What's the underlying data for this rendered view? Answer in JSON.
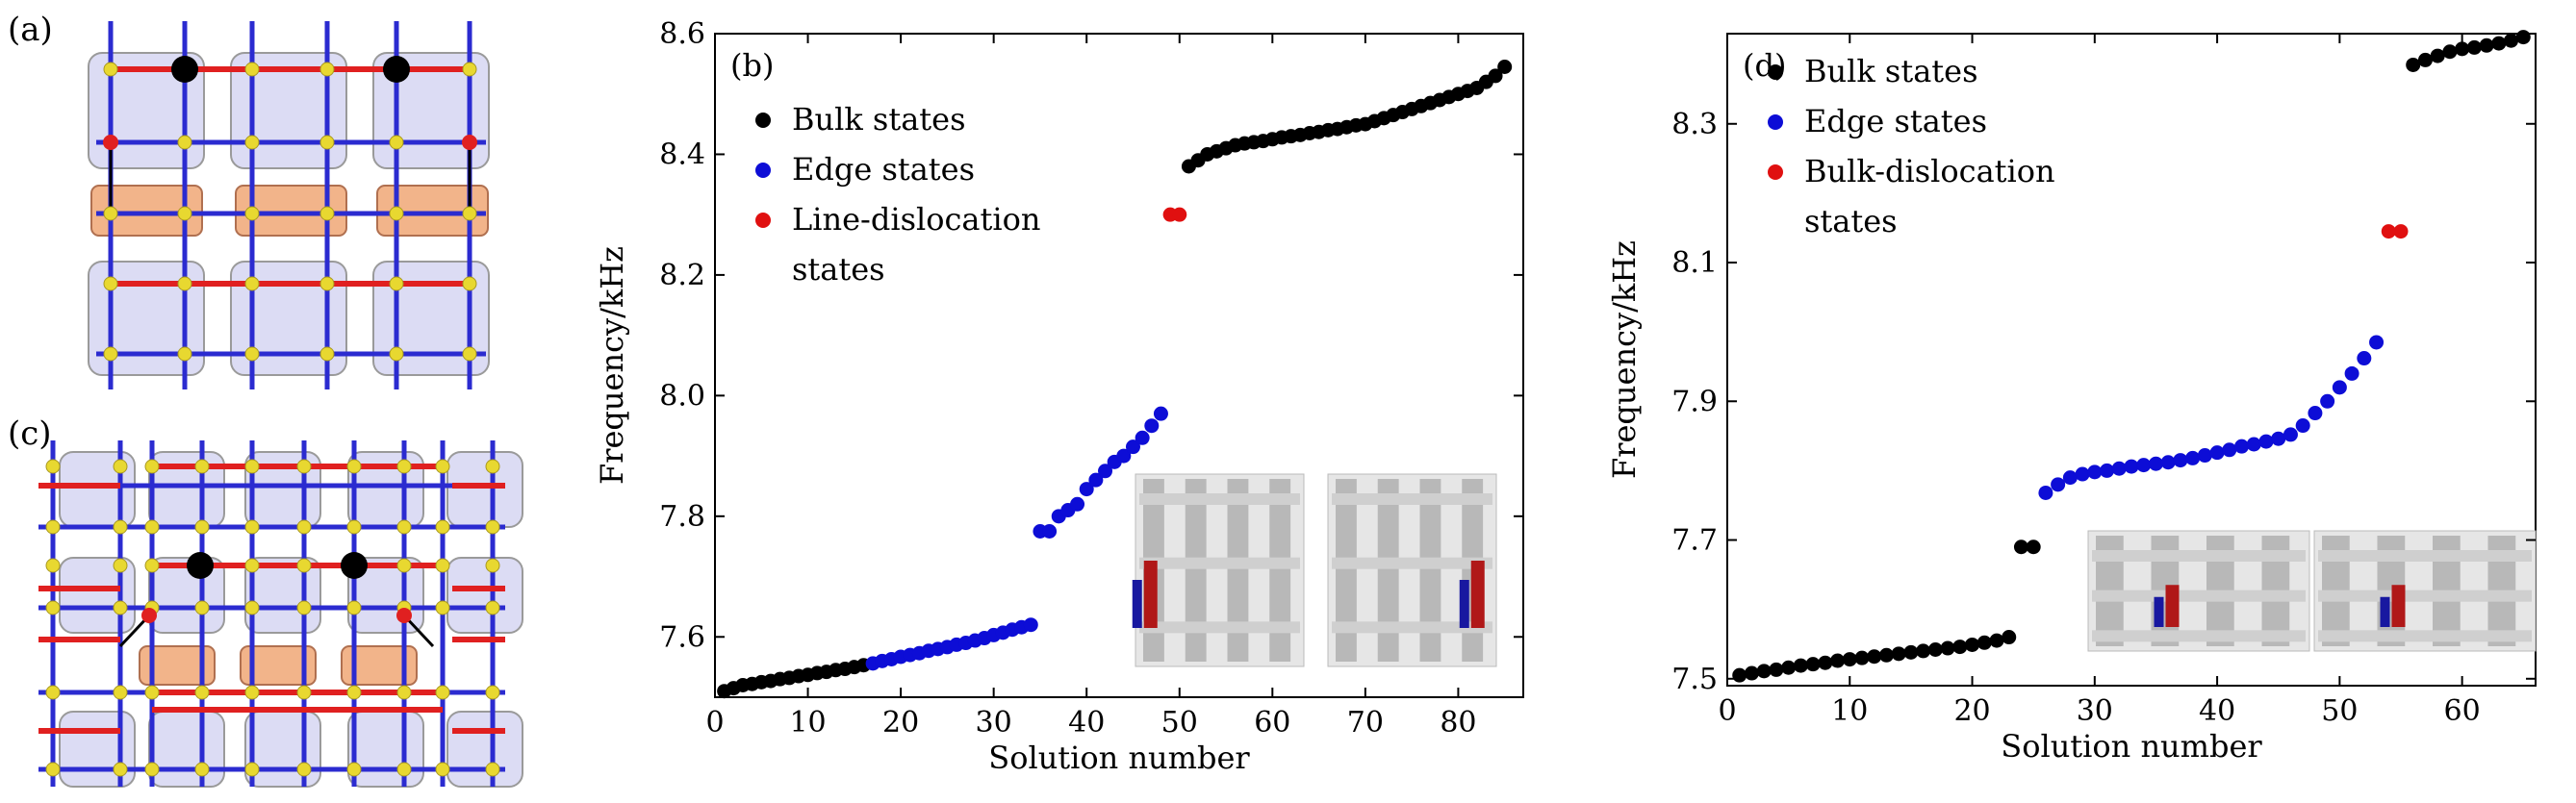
{
  "figure": {
    "panel_a_label": "(a)",
    "panel_c_label": "(c)"
  },
  "colors": {
    "bulk": "#000000",
    "edge": "#0d0dd6",
    "dislocation": "#e01010",
    "lattice_blue": "#2b2bd0",
    "lattice_red": "#e02020",
    "node_yellow": "#e8d830",
    "cell_fill": "#dcdcf4",
    "defect_fill": "#f2b48a"
  },
  "chart_data": [
    {
      "panel": "(b)",
      "type": "scatter",
      "xlabel": "Solution number",
      "ylabel": "Frequency/kHz",
      "xlim": [
        0,
        87
      ],
      "ylim": [
        7.5,
        8.6
      ],
      "xticks": [
        0,
        10,
        20,
        30,
        40,
        50,
        60,
        70,
        80
      ],
      "yticks": [
        7.6,
        7.8,
        8.0,
        8.2,
        8.4,
        8.6
      ],
      "ytick_labels": [
        "7.6",
        "7.8",
        "8.0",
        "8.2",
        "8.4",
        "8.6"
      ],
      "legend": {
        "position": "top-left",
        "entries": [
          "Bulk states",
          "Edge states",
          "Line-dislocation",
          "states"
        ]
      },
      "series": [
        {
          "name": "Bulk states",
          "color": "#000000",
          "x": [
            1,
            2,
            3,
            4,
            5,
            6,
            7,
            8,
            9,
            10,
            11,
            12,
            13,
            14,
            15,
            16,
            51,
            52,
            53,
            54,
            55,
            56,
            57,
            58,
            59,
            60,
            61,
            62,
            63,
            64,
            65,
            66,
            67,
            68,
            69,
            70,
            71,
            72,
            73,
            74,
            75,
            76,
            77,
            78,
            79,
            80,
            81,
            82,
            83,
            84,
            85
          ],
          "y": [
            7.51,
            7.515,
            7.52,
            7.522,
            7.525,
            7.527,
            7.53,
            7.532,
            7.535,
            7.537,
            7.54,
            7.542,
            7.545,
            7.547,
            7.55,
            7.553,
            8.38,
            8.39,
            8.4,
            8.405,
            8.41,
            8.415,
            8.418,
            8.42,
            8.422,
            8.425,
            8.428,
            8.43,
            8.432,
            8.435,
            8.437,
            8.44,
            8.442,
            8.445,
            8.448,
            8.45,
            8.455,
            8.46,
            8.465,
            8.47,
            8.475,
            8.48,
            8.485,
            8.49,
            8.495,
            8.5,
            8.505,
            8.51,
            8.52,
            8.53,
            8.545
          ]
        },
        {
          "name": "Edge states",
          "color": "#0d0dd6",
          "x": [
            17,
            18,
            19,
            20,
            21,
            22,
            23,
            24,
            25,
            26,
            27,
            28,
            29,
            30,
            31,
            32,
            33,
            34,
            35,
            36,
            37,
            38,
            39,
            40,
            41,
            42,
            43,
            44,
            45,
            46,
            47,
            48
          ],
          "y": [
            7.556,
            7.56,
            7.563,
            7.567,
            7.57,
            7.573,
            7.577,
            7.58,
            7.583,
            7.587,
            7.59,
            7.594,
            7.598,
            7.603,
            7.607,
            7.612,
            7.616,
            7.62,
            7.775,
            7.775,
            7.8,
            7.81,
            7.82,
            7.845,
            7.86,
            7.875,
            7.89,
            7.9,
            7.915,
            7.93,
            7.95,
            7.97
          ]
        },
        {
          "name": "Line-dislocation states",
          "color": "#e01010",
          "x": [
            49,
            50
          ],
          "y": [
            8.3,
            8.3
          ]
        }
      ]
    },
    {
      "panel": "(d)",
      "type": "scatter",
      "xlabel": "Solution number",
      "ylabel": "Frequency/kHz",
      "xlim": [
        0,
        66
      ],
      "ylim": [
        7.49,
        8.43
      ],
      "xticks": [
        0,
        10,
        20,
        30,
        40,
        50,
        60
      ],
      "yticks": [
        7.5,
        7.7,
        7.9,
        8.1,
        8.3
      ],
      "ytick_labels": [
        "7.5",
        "7.7",
        "7.9",
        "8.1",
        "8.3"
      ],
      "legend": {
        "position": "top-left",
        "entries": [
          "Bulk states",
          "Edge states",
          "Bulk-dislocation",
          "states"
        ]
      },
      "series": [
        {
          "name": "Bulk states",
          "color": "#000000",
          "x": [
            1,
            2,
            3,
            4,
            5,
            6,
            7,
            8,
            9,
            10,
            11,
            12,
            13,
            14,
            15,
            16,
            17,
            18,
            19,
            20,
            21,
            22,
            23,
            24,
            25,
            56,
            57,
            58,
            59,
            60,
            61,
            62,
            63,
            64,
            65
          ],
          "y": [
            7.505,
            7.508,
            7.511,
            7.513,
            7.516,
            7.519,
            7.521,
            7.523,
            7.526,
            7.528,
            7.53,
            7.532,
            7.534,
            7.536,
            7.538,
            7.54,
            7.542,
            7.544,
            7.546,
            7.549,
            7.552,
            7.555,
            7.56,
            7.69,
            7.69,
            8.385,
            8.392,
            8.398,
            8.404,
            8.408,
            8.41,
            8.413,
            8.416,
            8.42,
            8.425
          ]
        },
        {
          "name": "Edge states",
          "color": "#0d0dd6",
          "x": [
            26,
            27,
            28,
            29,
            30,
            31,
            32,
            33,
            34,
            35,
            36,
            37,
            38,
            39,
            40,
            41,
            42,
            43,
            44,
            45,
            46,
            47,
            48,
            49,
            50,
            51,
            52,
            53
          ],
          "y": [
            7.768,
            7.78,
            7.79,
            7.795,
            7.798,
            7.8,
            7.803,
            7.806,
            7.808,
            7.81,
            7.812,
            7.815,
            7.818,
            7.822,
            7.826,
            7.83,
            7.835,
            7.838,
            7.842,
            7.846,
            7.852,
            7.865,
            7.883,
            7.9,
            7.92,
            7.94,
            7.962,
            7.985
          ]
        },
        {
          "name": "Bulk-dislocation states",
          "color": "#e01010",
          "x": [
            54,
            55
          ],
          "y": [
            8.145,
            8.145
          ]
        }
      ]
    }
  ]
}
